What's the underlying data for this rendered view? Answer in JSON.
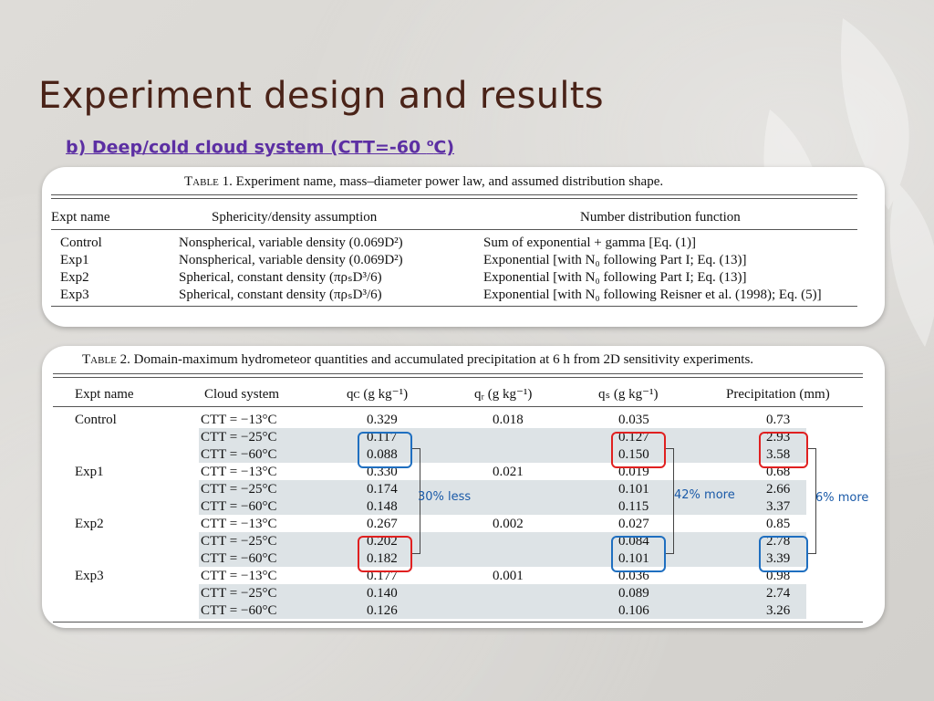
{
  "title": "Experiment design and results",
  "subtitle": {
    "text": "b) Deep/cold cloud system (CTT=-60 ",
    "sup": "o",
    "unit": "C)"
  },
  "table1": {
    "caption_label": "Table 1.",
    "caption": "Experiment name, mass–diameter power law, and assumed distribution shape.",
    "headers": [
      "Expt name",
      "Sphericity/density assumption",
      "Number distribution function"
    ],
    "rows": [
      {
        "name": "Control",
        "assumption": "Nonspherical, variable density (0.069D²)",
        "distribution": "Sum of exponential + gamma [Eq. (1)]"
      },
      {
        "name": "Exp1",
        "assumption": "Nonspherical, variable density (0.069D²)",
        "distribution": "Exponential [with N₀ following Part I; Eq. (13)]"
      },
      {
        "name": "Exp2",
        "assumption": "Spherical, constant density (πρₛD³/6)",
        "distribution": "Exponential [with N₀ following Part I; Eq. (13)]"
      },
      {
        "name": "Exp3",
        "assumption": "Spherical, constant density (πρₛD³/6)",
        "distribution": "Exponential [with N₀ following Reisner et al. (1998); Eq. (5)]"
      }
    ]
  },
  "table2": {
    "caption_label": "Table 2.",
    "caption": "Domain-maximum hydrometeor quantities and accumulated precipitation at 6 h from 2D sensitivity experiments.",
    "headers": [
      "Expt name",
      "Cloud system",
      "qᴄ (g kg⁻¹)",
      "qᵣ (g kg⁻¹)",
      "qₛ (g kg⁻¹)",
      "Precipitation (mm)"
    ],
    "rows": [
      {
        "name": "Control",
        "ctt": "CTT = −13°C",
        "qc": "0.329",
        "qr": "0.018",
        "qs": "0.035",
        "precip": "0.73"
      },
      {
        "name": "",
        "ctt": "CTT = −25°C",
        "qc": "0.117",
        "qr": "",
        "qs": "0.127",
        "precip": "2.93"
      },
      {
        "name": "",
        "ctt": "CTT = −60°C",
        "qc": "0.088",
        "qr": "",
        "qs": "0.150",
        "precip": "3.58"
      },
      {
        "name": "Exp1",
        "ctt": "CTT = −13°C",
        "qc": "0.330",
        "qr": "0.021",
        "qs": "0.019",
        "precip": "0.68"
      },
      {
        "name": "",
        "ctt": "CTT = −25°C",
        "qc": "0.174",
        "qr": "",
        "qs": "0.101",
        "precip": "2.66"
      },
      {
        "name": "",
        "ctt": "CTT = −60°C",
        "qc": "0.148",
        "qr": "",
        "qs": "0.115",
        "precip": "3.37"
      },
      {
        "name": "Exp2",
        "ctt": "CTT = −13°C",
        "qc": "0.267",
        "qr": "0.002",
        "qs": "0.027",
        "precip": "0.85"
      },
      {
        "name": "",
        "ctt": "CTT = −25°C",
        "qc": "0.202",
        "qr": "",
        "qs": "0.084",
        "precip": "2.78"
      },
      {
        "name": "",
        "ctt": "CTT = −60°C",
        "qc": "0.182",
        "qr": "",
        "qs": "0.101",
        "precip": "3.39"
      },
      {
        "name": "Exp3",
        "ctt": "CTT = −13°C",
        "qc": "0.177",
        "qr": "0.001",
        "qs": "0.036",
        "precip": "0.98"
      },
      {
        "name": "",
        "ctt": "CTT = −25°C",
        "qc": "0.140",
        "qr": "",
        "qs": "0.089",
        "precip": "2.74"
      },
      {
        "name": "",
        "ctt": "CTT = −60°C",
        "qc": "0.126",
        "qr": "",
        "qs": "0.106",
        "precip": "3.26"
      }
    ]
  },
  "annotations": {
    "qc_note": "30%  less",
    "qs_note": "42%  more",
    "precip_note": "6% more"
  },
  "colors": {
    "title": "#4a2318",
    "subtitle": "#5c2fa3",
    "highlight_red": "#e02020",
    "highlight_blue": "#1f6fc0",
    "note": "#1a5aa8"
  }
}
